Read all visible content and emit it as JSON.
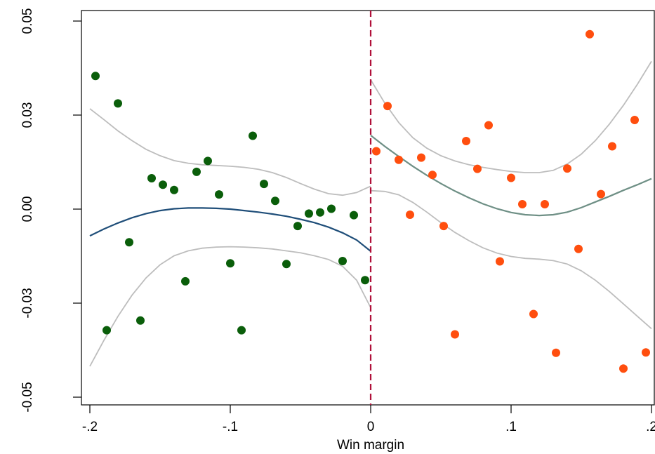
{
  "chart_data": {
    "type": "scatter",
    "title": "",
    "xlabel": "Win margin",
    "ylabel": "",
    "xlim": [
      -0.2,
      0.2
    ],
    "ylim": [
      -0.05,
      0.05
    ],
    "grid": false,
    "x_ticks": [
      {
        "value": -0.2,
        "label": "-.2"
      },
      {
        "value": -0.1,
        "label": "-.1"
      },
      {
        "value": 0,
        "label": "0"
      },
      {
        "value": 0.1,
        "label": ".1"
      },
      {
        "value": 0.2,
        "label": ".2"
      }
    ],
    "y_ticks": [
      {
        "value": -0.05,
        "label": "-0.05"
      },
      {
        "value": -0.025,
        "label": "-0.03"
      },
      {
        "value": 0,
        "label": "0.00"
      },
      {
        "value": 0.025,
        "label": "0.03"
      },
      {
        "value": 0.05,
        "label": "0.05"
      }
    ],
    "cutoff": {
      "x": 0,
      "color": "#b0103a",
      "style": "dashed"
    },
    "series": [
      {
        "kind": "points",
        "color": "#0a5e0a",
        "points": [
          [
            -0.196,
            0.0354
          ],
          [
            -0.188,
            -0.0322
          ],
          [
            -0.18,
            0.0281
          ],
          [
            -0.172,
            -0.0088
          ],
          [
            -0.164,
            -0.0296
          ],
          [
            -0.156,
            0.0082
          ],
          [
            -0.148,
            0.0065
          ],
          [
            -0.14,
            0.0051
          ],
          [
            -0.132,
            -0.0192
          ],
          [
            -0.124,
            0.0099
          ],
          [
            -0.116,
            0.0128
          ],
          [
            -0.108,
            0.0039
          ],
          [
            -0.1,
            -0.0144
          ],
          [
            -0.092,
            -0.0322
          ],
          [
            -0.084,
            0.0195
          ],
          [
            -0.076,
            0.0067
          ],
          [
            -0.068,
            0.0022
          ],
          [
            -0.06,
            -0.0146
          ],
          [
            -0.052,
            -0.0045
          ],
          [
            -0.044,
            -0.0012
          ],
          [
            -0.036,
            -0.0009
          ],
          [
            -0.028,
            0.0001
          ],
          [
            -0.02,
            -0.0138
          ],
          [
            -0.012,
            -0.0016
          ],
          [
            -0.004,
            -0.0189
          ]
        ]
      },
      {
        "kind": "points",
        "color": "#ff4e0e",
        "points": [
          [
            0.004,
            0.0154
          ],
          [
            0.012,
            0.0274
          ],
          [
            0.02,
            0.0131
          ],
          [
            0.028,
            -0.0015
          ],
          [
            0.036,
            0.0137
          ],
          [
            0.044,
            0.0091
          ],
          [
            0.052,
            -0.0045
          ],
          [
            0.06,
            -0.0333
          ],
          [
            0.068,
            0.0181
          ],
          [
            0.076,
            0.0107
          ],
          [
            0.084,
            0.0223
          ],
          [
            0.092,
            -0.0139
          ],
          [
            0.1,
            0.0083
          ],
          [
            0.108,
            0.0013
          ],
          [
            0.116,
            -0.0279
          ],
          [
            0.124,
            0.0013
          ],
          [
            0.132,
            -0.0382
          ],
          [
            0.14,
            0.0108
          ],
          [
            0.148,
            -0.0106
          ],
          [
            0.156,
            0.0465
          ],
          [
            0.164,
            0.004
          ],
          [
            0.172,
            0.0167
          ],
          [
            0.18,
            -0.0424
          ],
          [
            0.188,
            0.0237
          ],
          [
            0.196,
            -0.0381
          ]
        ]
      },
      {
        "kind": "line",
        "color": "#1f4e79",
        "points": [
          [
            -0.2,
            -0.0071
          ],
          [
            -0.19,
            -0.0053
          ],
          [
            -0.18,
            -0.0037
          ],
          [
            -0.17,
            -0.0023
          ],
          [
            -0.16,
            -0.0012
          ],
          [
            -0.15,
            -0.0004
          ],
          [
            -0.14,
            0.0001
          ],
          [
            -0.13,
            0.0003
          ],
          [
            -0.12,
            0.0003
          ],
          [
            -0.11,
            0.0002
          ],
          [
            -0.1,
            0.0
          ],
          [
            -0.09,
            -0.0004
          ],
          [
            -0.08,
            -0.0008
          ],
          [
            -0.07,
            -0.0013
          ],
          [
            -0.06,
            -0.0019
          ],
          [
            -0.05,
            -0.0027
          ],
          [
            -0.04,
            -0.0036
          ],
          [
            -0.03,
            -0.0048
          ],
          [
            -0.02,
            -0.0063
          ],
          [
            -0.01,
            -0.0082
          ],
          [
            0.0,
            -0.0112
          ]
        ]
      },
      {
        "kind": "line",
        "color": "#bdbdbd",
        "points": [
          [
            -0.2,
            0.0267
          ],
          [
            -0.19,
            0.0238
          ],
          [
            -0.18,
            0.0208
          ],
          [
            -0.17,
            0.0182
          ],
          [
            -0.16,
            0.0159
          ],
          [
            -0.15,
            0.0142
          ],
          [
            -0.14,
            0.0129
          ],
          [
            -0.13,
            0.0122
          ],
          [
            -0.12,
            0.0118
          ],
          [
            -0.11,
            0.0116
          ],
          [
            -0.1,
            0.0114
          ],
          [
            -0.09,
            0.0111
          ],
          [
            -0.08,
            0.0106
          ],
          [
            -0.07,
            0.0097
          ],
          [
            -0.06,
            0.0084
          ],
          [
            -0.05,
            0.0068
          ],
          [
            -0.04,
            0.0053
          ],
          [
            -0.03,
            0.0041
          ],
          [
            -0.02,
            0.0037
          ],
          [
            -0.01,
            0.0044
          ],
          [
            0.0,
            0.0061
          ]
        ]
      },
      {
        "kind": "line",
        "color": "#bdbdbd",
        "points": [
          [
            -0.2,
            -0.0418
          ],
          [
            -0.19,
            -0.0349
          ],
          [
            -0.18,
            -0.0285
          ],
          [
            -0.17,
            -0.0229
          ],
          [
            -0.16,
            -0.0183
          ],
          [
            -0.15,
            -0.0148
          ],
          [
            -0.14,
            -0.0124
          ],
          [
            -0.13,
            -0.0111
          ],
          [
            -0.12,
            -0.0104
          ],
          [
            -0.11,
            -0.0101
          ],
          [
            -0.1,
            -0.01
          ],
          [
            -0.09,
            -0.0101
          ],
          [
            -0.08,
            -0.0103
          ],
          [
            -0.07,
            -0.0106
          ],
          [
            -0.06,
            -0.0111
          ],
          [
            -0.05,
            -0.0116
          ],
          [
            -0.04,
            -0.0124
          ],
          [
            -0.03,
            -0.0134
          ],
          [
            -0.02,
            -0.0152
          ],
          [
            -0.01,
            -0.0189
          ],
          [
            0.0,
            -0.0262
          ]
        ]
      },
      {
        "kind": "line",
        "color": "#6e8f85",
        "points": [
          [
            0.0,
            0.0196
          ],
          [
            0.01,
            0.0167
          ],
          [
            0.02,
            0.014
          ],
          [
            0.03,
            0.0114
          ],
          [
            0.04,
            0.009
          ],
          [
            0.05,
            0.0068
          ],
          [
            0.06,
            0.0048
          ],
          [
            0.07,
            0.003
          ],
          [
            0.08,
            0.0014
          ],
          [
            0.09,
            0.0001
          ],
          [
            0.1,
            -0.0009
          ],
          [
            0.11,
            -0.0015
          ],
          [
            0.12,
            -0.0017
          ],
          [
            0.13,
            -0.0015
          ],
          [
            0.14,
            -0.0008
          ],
          [
            0.15,
            0.0004
          ],
          [
            0.16,
            0.0019
          ],
          [
            0.17,
            0.0034
          ],
          [
            0.18,
            0.005
          ],
          [
            0.19,
            0.0065
          ],
          [
            0.2,
            0.0081
          ]
        ]
      },
      {
        "kind": "line",
        "color": "#bdbdbd",
        "points": [
          [
            0.0,
            0.0344
          ],
          [
            0.01,
            0.0282
          ],
          [
            0.02,
            0.023
          ],
          [
            0.03,
            0.019
          ],
          [
            0.04,
            0.0162
          ],
          [
            0.05,
            0.0142
          ],
          [
            0.06,
            0.0128
          ],
          [
            0.07,
            0.0118
          ],
          [
            0.08,
            0.0111
          ],
          [
            0.09,
            0.0105
          ],
          [
            0.1,
            0.01
          ],
          [
            0.11,
            0.0097
          ],
          [
            0.12,
            0.0097
          ],
          [
            0.13,
            0.0103
          ],
          [
            0.14,
            0.012
          ],
          [
            0.15,
            0.0146
          ],
          [
            0.16,
            0.0182
          ],
          [
            0.17,
            0.0226
          ],
          [
            0.18,
            0.0276
          ],
          [
            0.19,
            0.0332
          ],
          [
            0.2,
            0.0393
          ]
        ]
      },
      {
        "kind": "line",
        "color": "#bdbdbd",
        "points": [
          [
            0.0,
            0.0049
          ],
          [
            0.01,
            0.0047
          ],
          [
            0.02,
            0.0038
          ],
          [
            0.03,
            0.0018
          ],
          [
            0.04,
            -0.0008
          ],
          [
            0.05,
            -0.0036
          ],
          [
            0.06,
            -0.0062
          ],
          [
            0.07,
            -0.0084
          ],
          [
            0.08,
            -0.0103
          ],
          [
            0.09,
            -0.0117
          ],
          [
            0.1,
            -0.0126
          ],
          [
            0.11,
            -0.0131
          ],
          [
            0.12,
            -0.0133
          ],
          [
            0.13,
            -0.0137
          ],
          [
            0.14,
            -0.0146
          ],
          [
            0.15,
            -0.0164
          ],
          [
            0.16,
            -0.0189
          ],
          [
            0.17,
            -0.0219
          ],
          [
            0.18,
            -0.0252
          ],
          [
            0.19,
            -0.0285
          ],
          [
            0.2,
            -0.0318
          ]
        ]
      }
    ]
  }
}
